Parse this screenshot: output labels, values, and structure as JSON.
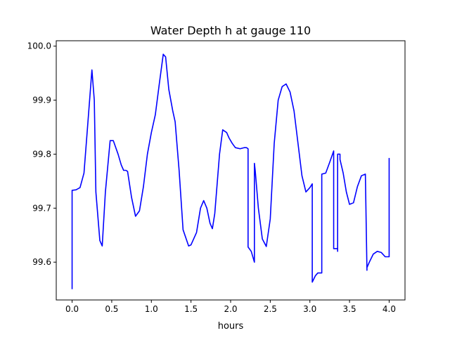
{
  "chart_data": {
    "type": "line",
    "title": "Water Depth h at gauge 110",
    "xlabel": "hours",
    "ylabel": "",
    "xlim": [
      -0.2,
      4.2
    ],
    "ylim": [
      99.53,
      100.01
    ],
    "xticks": [
      0.0,
      0.5,
      1.0,
      1.5,
      2.0,
      2.5,
      3.0,
      3.5,
      4.0
    ],
    "xtick_labels": [
      "0.0",
      "0.5",
      "1.0",
      "1.5",
      "2.0",
      "2.5",
      "3.0",
      "3.5",
      "4.0"
    ],
    "yticks": [
      99.6,
      99.7,
      99.8,
      99.9,
      100.0
    ],
    "ytick_labels": [
      "99.6",
      "99.7",
      "99.8",
      "99.9",
      "100.0"
    ],
    "grid": false,
    "series": [
      {
        "color": "#0000ff",
        "x": [
          0.0,
          0.0,
          0.05,
          0.1,
          0.15,
          0.2,
          0.25,
          0.28,
          0.3,
          0.35,
          0.38,
          0.42,
          0.48,
          0.52,
          0.58,
          0.62,
          0.65,
          0.68,
          0.7,
          0.75,
          0.8,
          0.85,
          0.9,
          0.95,
          1.0,
          1.05,
          1.1,
          1.15,
          1.18,
          1.22,
          1.27,
          1.3,
          1.35,
          1.4,
          1.47,
          1.5,
          1.57,
          1.62,
          1.66,
          1.7,
          1.74,
          1.77,
          1.8,
          1.86,
          1.9,
          1.95,
          1.98,
          2.02,
          2.06,
          2.12,
          2.17,
          2.2,
          2.22,
          2.22,
          2.26,
          2.3,
          2.3,
          2.31,
          2.35,
          2.4,
          2.45,
          2.5,
          2.55,
          2.6,
          2.65,
          2.7,
          2.75,
          2.8,
          2.85,
          2.9,
          2.95,
          3.0,
          3.03,
          3.03,
          3.07,
          3.1,
          3.15,
          3.15,
          3.2,
          3.25,
          3.3,
          3.3,
          3.35,
          3.35,
          3.35,
          3.38,
          3.38,
          3.42,
          3.46,
          3.5,
          3.55,
          3.6,
          3.65,
          3.7,
          3.72,
          3.72,
          3.75,
          3.8,
          3.85,
          3.9,
          3.95,
          4.0,
          4.0
        ],
        "y": [
          99.55,
          99.733,
          99.734,
          99.738,
          99.765,
          99.86,
          99.956,
          99.9,
          99.73,
          99.64,
          99.63,
          99.73,
          99.825,
          99.825,
          99.8,
          99.78,
          99.77,
          99.77,
          99.768,
          99.72,
          99.685,
          99.695,
          99.74,
          99.8,
          99.84,
          99.873,
          99.93,
          99.985,
          99.98,
          99.92,
          99.88,
          99.86,
          99.77,
          99.66,
          99.63,
          99.632,
          99.655,
          99.7,
          99.714,
          99.7,
          99.672,
          99.662,
          99.69,
          99.8,
          99.845,
          99.84,
          99.83,
          99.82,
          99.812,
          99.81,
          99.812,
          99.812,
          99.81,
          99.628,
          99.62,
          99.6,
          99.783,
          99.77,
          99.7,
          99.643,
          99.629,
          99.68,
          99.82,
          99.9,
          99.925,
          99.93,
          99.915,
          99.88,
          99.82,
          99.76,
          99.73,
          99.738,
          99.745,
          99.563,
          99.575,
          99.58,
          99.58,
          99.763,
          99.765,
          99.785,
          99.806,
          99.625,
          99.625,
          99.62,
          99.8,
          99.8,
          99.79,
          99.765,
          99.73,
          99.707,
          99.71,
          99.74,
          99.76,
          99.763,
          99.585,
          99.59,
          99.6,
          99.615,
          99.62,
          99.618,
          99.61,
          99.61,
          99.793
        ]
      }
    ]
  }
}
